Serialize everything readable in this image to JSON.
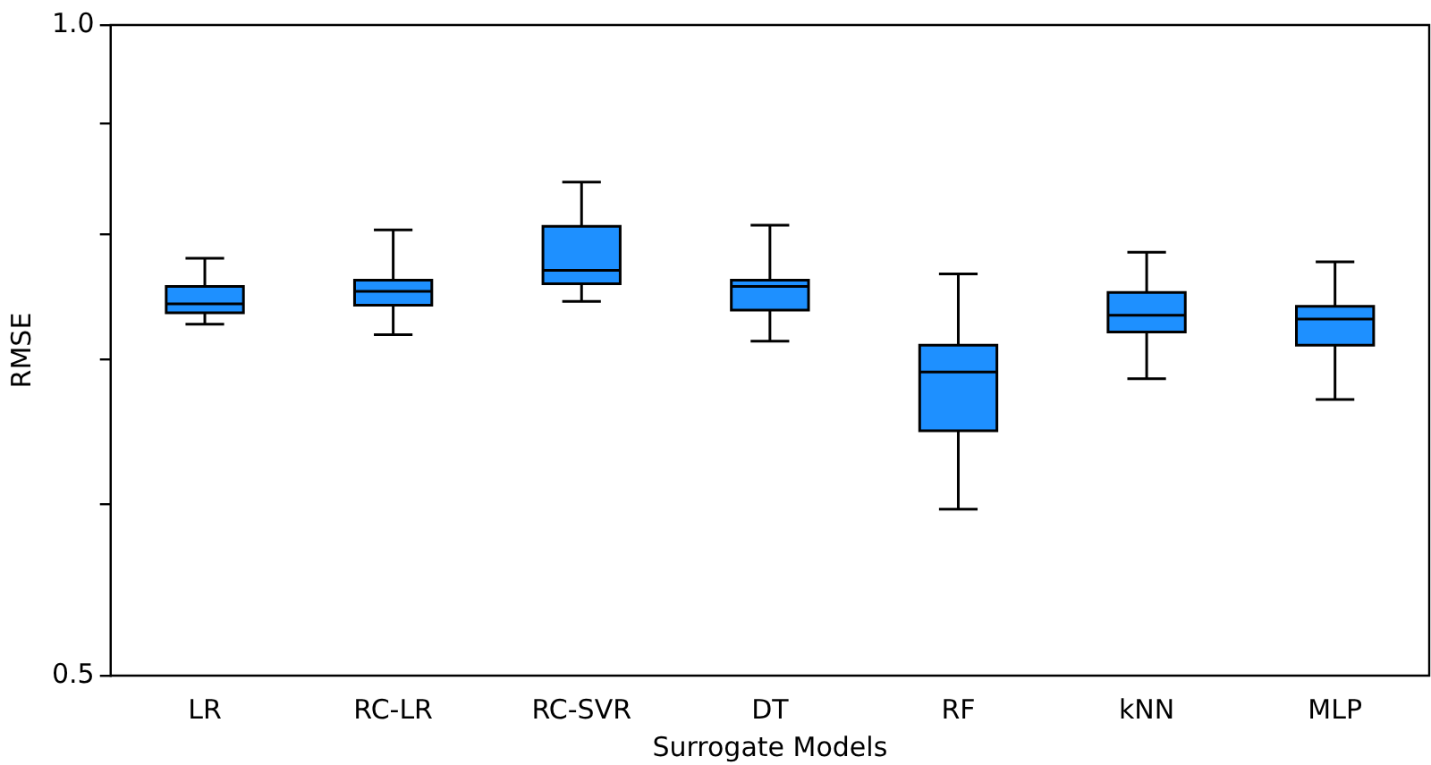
{
  "chart_data": {
    "type": "box",
    "xlabel": "Surrogate Models",
    "ylabel": "RMSE",
    "log": "y",
    "color": "#1e90ff",
    "categories": [
      "LR",
      "RC-LR",
      "RC-SVR",
      "DT",
      "RF",
      "kNN",
      "MLP"
    ],
    "ylim": [
      0.5,
      1.0
    ],
    "yticks": [
      {
        "value": 0.5,
        "label": "0.5"
      },
      {
        "value": 0.6,
        "label": null
      },
      {
        "value": 0.7,
        "label": null
      },
      {
        "value": 0.8,
        "label": null
      },
      {
        "value": 0.9,
        "label": null
      },
      {
        "value": 1.0,
        "label": "1.0"
      }
    ],
    "boxes": [
      {
        "low": 0.727,
        "q1": 0.736,
        "median": 0.743,
        "q3": 0.757,
        "high": 0.78
      },
      {
        "low": 0.719,
        "q1": 0.742,
        "median": 0.753,
        "q3": 0.762,
        "high": 0.804
      },
      {
        "low": 0.745,
        "q1": 0.759,
        "median": 0.77,
        "q3": 0.807,
        "high": 0.846
      },
      {
        "low": 0.714,
        "q1": 0.738,
        "median": 0.757,
        "q3": 0.762,
        "high": 0.808
      },
      {
        "low": 0.597,
        "q1": 0.649,
        "median": 0.691,
        "q3": 0.711,
        "high": 0.767
      },
      {
        "low": 0.686,
        "q1": 0.721,
        "median": 0.734,
        "q3": 0.752,
        "high": 0.785
      },
      {
        "low": 0.671,
        "q1": 0.711,
        "median": 0.731,
        "q3": 0.741,
        "high": 0.777
      }
    ]
  }
}
